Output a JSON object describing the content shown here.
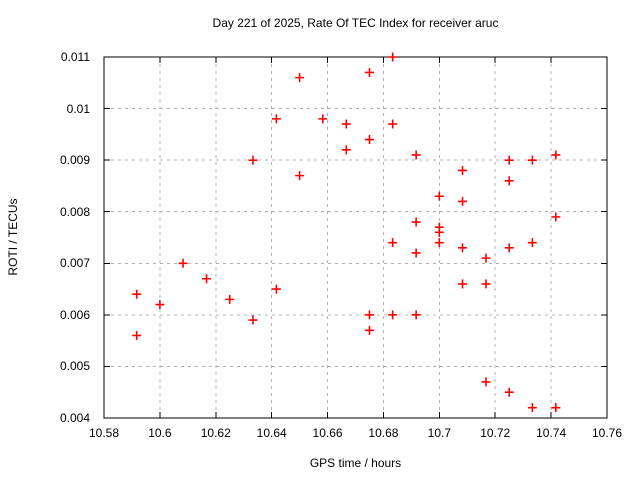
{
  "chart_data": {
    "type": "scatter",
    "title": "Day 221 of 2025, Rate Of TEC Index for receiver aruc",
    "xlabel": "GPS time / hours",
    "ylabel": "ROTI / TECUs",
    "xlim": [
      10.58,
      10.76
    ],
    "ylim": [
      0.004,
      0.011
    ],
    "xticks": [
      10.58,
      10.6,
      10.62,
      10.64,
      10.66,
      10.68,
      10.7,
      10.72,
      10.74,
      10.76
    ],
    "xtick_labels": [
      "10.58",
      "10.6",
      "10.62",
      "10.64",
      "10.66",
      "10.68",
      "10.7",
      "10.72",
      "10.74",
      "10.76"
    ],
    "yticks": [
      0.004,
      0.005,
      0.006,
      0.007,
      0.008,
      0.009,
      0.01,
      0.011
    ],
    "ytick_labels": [
      "0.004",
      "0.005",
      "0.006",
      "0.007",
      "0.008",
      "0.009",
      "0.01",
      "0.011"
    ],
    "grid": true,
    "legend": "none",
    "marker": "plus",
    "marker_color": "#ff0000",
    "grid_color": "#b0b0b0",
    "axis_color": "#000000",
    "background_color": "#ffffff",
    "points": [
      [
        10.5917,
        0.0064
      ],
      [
        10.5917,
        0.0056
      ],
      [
        10.6,
        0.0062
      ],
      [
        10.6083,
        0.007
      ],
      [
        10.6167,
        0.0067
      ],
      [
        10.625,
        0.0063
      ],
      [
        10.6333,
        0.009
      ],
      [
        10.6333,
        0.0059
      ],
      [
        10.6417,
        0.0098
      ],
      [
        10.6417,
        0.0065
      ],
      [
        10.65,
        0.0106
      ],
      [
        10.65,
        0.0087
      ],
      [
        10.6583,
        0.0098
      ],
      [
        10.6667,
        0.0097
      ],
      [
        10.6667,
        0.0092
      ],
      [
        10.675,
        0.0107
      ],
      [
        10.675,
        0.0094
      ],
      [
        10.675,
        0.006
      ],
      [
        10.675,
        0.0057
      ],
      [
        10.6833,
        0.011
      ],
      [
        10.6833,
        0.0097
      ],
      [
        10.6833,
        0.0074
      ],
      [
        10.6833,
        0.006
      ],
      [
        10.6917,
        0.0091
      ],
      [
        10.6917,
        0.0078
      ],
      [
        10.6917,
        0.0072
      ],
      [
        10.6917,
        0.006
      ],
      [
        10.7,
        0.0083
      ],
      [
        10.7,
        0.0077
      ],
      [
        10.7,
        0.0076
      ],
      [
        10.7,
        0.0074
      ],
      [
        10.7083,
        0.0088
      ],
      [
        10.7083,
        0.0082
      ],
      [
        10.7083,
        0.0073
      ],
      [
        10.7083,
        0.0066
      ],
      [
        10.7167,
        0.0071
      ],
      [
        10.7167,
        0.0066
      ],
      [
        10.7167,
        0.0047
      ],
      [
        10.725,
        0.009
      ],
      [
        10.725,
        0.0086
      ],
      [
        10.725,
        0.0073
      ],
      [
        10.725,
        0.0045
      ],
      [
        10.7333,
        0.009
      ],
      [
        10.7333,
        0.0074
      ],
      [
        10.7333,
        0.0042
      ],
      [
        10.7417,
        0.0091
      ],
      [
        10.7417,
        0.0079
      ],
      [
        10.7417,
        0.0042
      ]
    ]
  }
}
